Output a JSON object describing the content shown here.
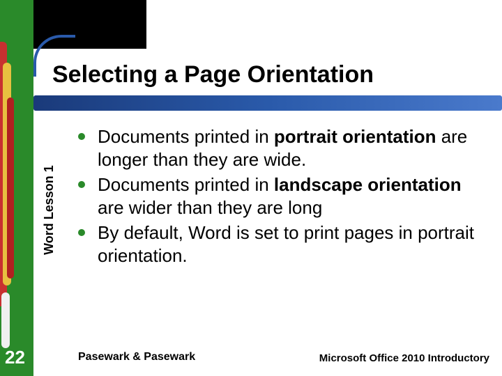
{
  "colors": {
    "green_stripe": "#2a8a2a",
    "blue_bar_gradient": [
      "#1a3a7a",
      "#2a5aaa",
      "#4a7acc"
    ],
    "bullet": "#2a8a2a",
    "black_box": "#000000",
    "page_num_text": "#ffffff"
  },
  "typography": {
    "title_fontsize": 34,
    "body_fontsize": 26,
    "sidebar_fontsize": 18,
    "footer_fontsize": 16,
    "page_num_fontsize": 26,
    "font_family": "Arial"
  },
  "title": "Selecting a Page Orientation",
  "sidebar_label": "Word Lesson 1",
  "bullets": [
    {
      "pre": "Documents printed in ",
      "bold": "portrait orientation",
      "post": " are longer than they are wide."
    },
    {
      "pre": "Documents printed in ",
      "bold": "landscape orientation",
      "post": " are wider than they are long"
    },
    {
      "pre": "By default, Word is set to print pages in portrait orientation.",
      "bold": "",
      "post": ""
    }
  ],
  "page_number": "22",
  "footer_left": "Pasewark & Pasewark",
  "footer_right": "Microsoft Office 2010 Introductory"
}
